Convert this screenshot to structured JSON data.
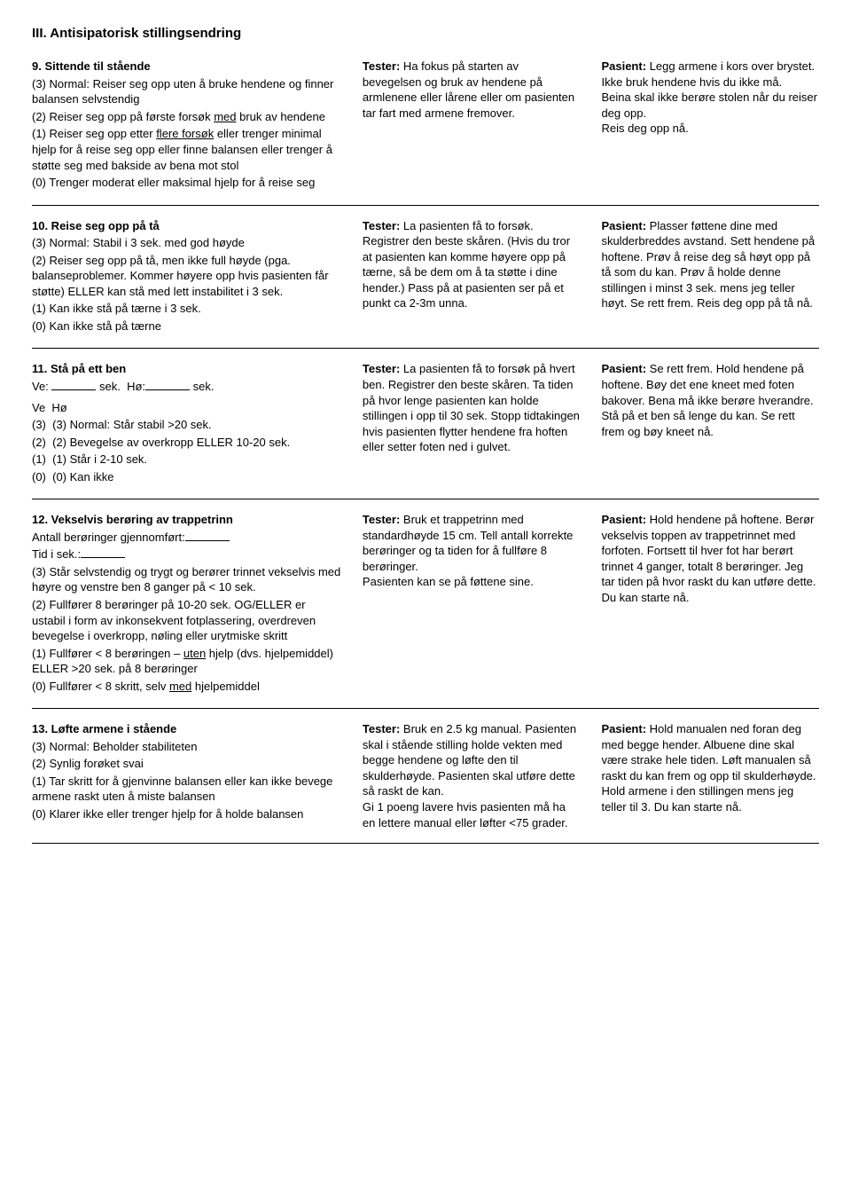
{
  "sectionTitle": "III. Antisipatorisk stillingsendring",
  "items": [
    {
      "title": "9. Sittende til stående",
      "leftLines": [
        "(3) Normal: Reiser seg opp uten å bruke hendene og finner balansen selvstendig",
        "(2) Reiser seg opp på første forsøk <span class=\"underline\">med</span> bruk av hendene",
        "(1) Reiser seg opp etter <span class=\"underline\">flere forsøk</span> eller trenger minimal hjelp for å reise seg opp eller finne balansen eller trenger å støtte seg med bakside av bena mot stol",
        "(0) Trenger moderat eller maksimal hjelp for å reise seg"
      ],
      "tester": "<b>Tester:</b> Ha fokus på starten av bevegelsen og bruk av hendene på armlenene eller lårene eller om pasienten tar fart med armene fremover.",
      "pasient": "<b>Pasient:</b> Legg armene i kors over brystet. Ikke bruk hendene hvis du ikke må.<br>Beina skal ikke berøre stolen når du reiser deg opp.<br>Reis deg opp nå."
    },
    {
      "title": "10. Reise seg opp på tå",
      "leftLines": [
        "(3) Normal: Stabil i 3 sek. med god høyde",
        "(2) Reiser seg opp på tå, men ikke full høyde (pga. balanseproblemer. Kommer høyere opp hvis pasienten får støtte) ELLER kan stå med lett instabilitet i 3 sek.",
        "(1) Kan ikke stå på tærne i 3 sek.",
        "(0) Kan ikke stå på tærne"
      ],
      "tester": "<b>Tester:</b> La pasienten få to forsøk. Registrer den beste skåren. (Hvis du tror at pasienten kan komme høyere opp på tærne, så be dem om å ta støtte i dine hender.) Pass på at pasienten ser på et punkt ca 2-3m unna.",
      "pasient": "<b>Pasient:</b> Plasser føttene dine med skulderbreddes avstand. Sett hendene på hoftene. Prøv å reise deg så høyt opp på tå som du kan. Prøv å holde denne stillingen i minst 3 sek. mens jeg teller høyt. Se rett frem. Reis deg opp på tå nå."
    },
    {
      "title": "11. Stå på ett ben",
      "preLines": [
        "Ve: <span class=\"blank\"></span> sek.&nbsp;&nbsp;Hø:<span class=\"blank\"></span> sek.",
        "<div class=\"ve-ho\">Ve&nbsp;&nbsp;Hø</div>"
      ],
      "leftLines": [
        "(3)&nbsp;&nbsp;(3) Normal: Står stabil &gt;20 sek.",
        "(2)&nbsp;&nbsp;(2) Bevegelse av overkropp ELLER 10-20 sek.",
        "(1)&nbsp;&nbsp;(1) Står i 2-10 sek.",
        "(0)&nbsp;&nbsp;(0) Kan ikke"
      ],
      "tester": "<b>Tester:</b> La pasienten få to forsøk på hvert ben. Registrer den beste skåren. Ta tiden på hvor lenge pasienten kan holde stillingen i opp til 30 sek. Stopp tidtakingen hvis pasienten flytter hendene fra hoften eller setter foten ned i gulvet.",
      "pasient": "<b>Pasient:</b> Se rett frem. Hold hendene på hoftene. Bøy det ene kneet med foten bakover. Bena må ikke berøre hverandre. Stå på et ben så lenge du kan. Se rett frem og bøy kneet nå."
    },
    {
      "title": "12. Vekselvis berøring av trappetrinn",
      "preLines": [
        "Antall berøringer gjennomført:<span class=\"blank\"></span>",
        "Tid i sek.:<span class=\"blank\"></span>"
      ],
      "leftLines": [
        "(3) Står selvstendig og trygt og berører trinnet vekselvis med høyre og venstre ben 8 ganger på &lt; 10 sek.",
        "(2) Fullfører 8 berøringer på 10-20 sek. OG/ELLER er ustabil i form av inkonsekvent fotplassering, overdreven bevegelse i overkropp, nøling eller urytmiske skritt",
        "(1) Fullfører &lt; 8 berøringen – <span class=\"underline\">uten</span> hjelp (dvs. hjelpemiddel) ELLER &gt;20 sek. på 8 berøringer",
        "(0) Fullfører &lt; 8 skritt, selv <span class=\"underline\">med</span> hjelpemiddel"
      ],
      "tester": "<b>Tester:</b> Bruk et trappetrinn med standardhøyde 15 cm. Tell antall korrekte berøringer og ta tiden for å fullføre 8 berøringer.<br>Pasienten kan se på føttene sine.",
      "pasient": "<b>Pasient:</b> Hold hendene på hoftene. Berør vekselvis toppen av trappetrinnet med forfoten. Fortsett til hver fot har berørt trinnet 4 ganger, totalt 8 berøringer. Jeg tar tiden på hvor raskt du kan utføre dette. Du kan starte nå."
    },
    {
      "title": "13. Løfte armene i stående",
      "leftLines": [
        "(3) Normal: Beholder stabiliteten",
        "(2) Synlig forøket svai",
        "(1) Tar skritt for å gjenvinne balansen eller kan ikke bevege armene raskt uten å miste balansen",
        "(0) Klarer ikke eller trenger hjelp for å holde balansen"
      ],
      "tester": "<b>Tester:</b> Bruk en 2.5 kg manual. Pasienten skal i stående stilling holde vekten med begge hendene og løfte den til skulderhøyde. Pasienten skal utføre dette så raskt de kan.<br>Gi 1 poeng lavere hvis pasienten må ha en lettere manual eller løfter &lt;75 grader.",
      "pasient": "<b>Pasient:</b> Hold manualen ned foran deg med begge hender. Albuene dine skal være strake hele tiden. Løft manualen så raskt du kan frem og opp til skulderhøyde. Hold armene i den stillingen mens jeg teller til 3. Du kan starte nå."
    }
  ]
}
